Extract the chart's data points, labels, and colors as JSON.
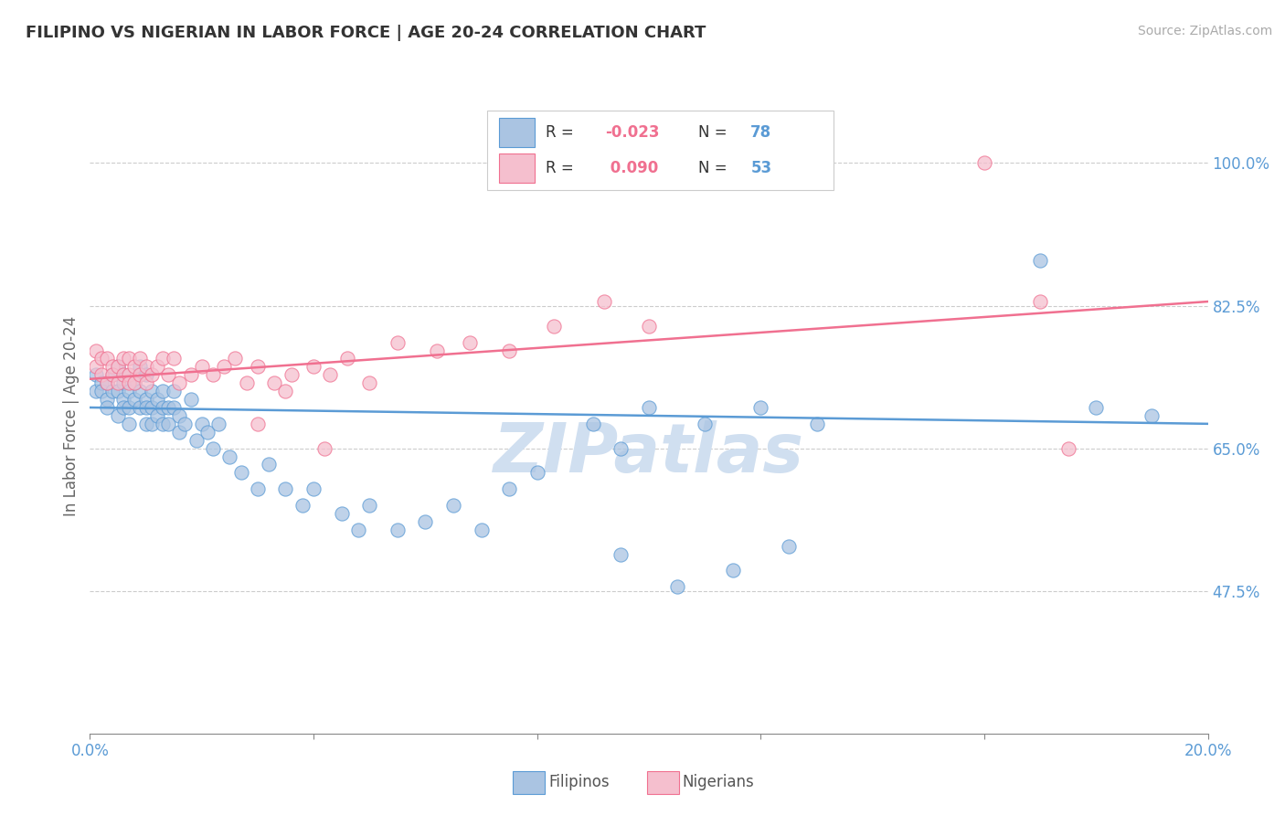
{
  "title": "FILIPINO VS NIGERIAN IN LABOR FORCE | AGE 20-24 CORRELATION CHART",
  "source_text": "Source: ZipAtlas.com",
  "ylabel_text": "In Labor Force | Age 20-24",
  "xlim": [
    0.0,
    0.2
  ],
  "ylim": [
    0.3,
    1.08
  ],
  "ytick_positions": [
    0.475,
    0.65,
    0.825,
    1.0
  ],
  "ytick_labels": [
    "47.5%",
    "65.0%",
    "82.5%",
    "100.0%"
  ],
  "xtick_positions": [
    0.0,
    0.2
  ],
  "xtick_labels": [
    "0.0%",
    "20.0%"
  ],
  "filipino_fill_color": "#aac4e2",
  "filipino_edge_color": "#5b9bd5",
  "nigerian_fill_color": "#f5bfce",
  "nigerian_edge_color": "#f07090",
  "filipino_line_color": "#5b9bd5",
  "nigerian_line_color": "#f07090",
  "watermark": "ZIPatlas",
  "watermark_color": "#d0dff0",
  "background_color": "#ffffff",
  "r_value_color": "#f07090",
  "n_value_color": "#5b9bd5",
  "filipino_scatter_x": [
    0.001,
    0.001,
    0.002,
    0.002,
    0.003,
    0.003,
    0.003,
    0.004,
    0.004,
    0.005,
    0.005,
    0.005,
    0.006,
    0.006,
    0.006,
    0.006,
    0.007,
    0.007,
    0.007,
    0.008,
    0.008,
    0.009,
    0.009,
    0.009,
    0.01,
    0.01,
    0.01,
    0.01,
    0.011,
    0.011,
    0.011,
    0.012,
    0.012,
    0.013,
    0.013,
    0.013,
    0.014,
    0.014,
    0.015,
    0.015,
    0.016,
    0.016,
    0.017,
    0.018,
    0.019,
    0.02,
    0.021,
    0.022,
    0.023,
    0.025,
    0.027,
    0.03,
    0.032,
    0.035,
    0.038,
    0.04,
    0.045,
    0.048,
    0.05,
    0.055,
    0.06,
    0.065,
    0.07,
    0.075,
    0.08,
    0.09,
    0.095,
    0.1,
    0.11,
    0.12,
    0.13,
    0.17,
    0.18,
    0.19,
    0.095,
    0.105,
    0.115,
    0.125
  ],
  "filipino_scatter_y": [
    0.72,
    0.74,
    0.73,
    0.72,
    0.71,
    0.73,
    0.7,
    0.72,
    0.74,
    0.75,
    0.72,
    0.69,
    0.74,
    0.73,
    0.71,
    0.7,
    0.72,
    0.7,
    0.68,
    0.71,
    0.73,
    0.75,
    0.72,
    0.7,
    0.71,
    0.74,
    0.7,
    0.68,
    0.72,
    0.7,
    0.68,
    0.71,
    0.69,
    0.72,
    0.7,
    0.68,
    0.7,
    0.68,
    0.72,
    0.7,
    0.69,
    0.67,
    0.68,
    0.71,
    0.66,
    0.68,
    0.67,
    0.65,
    0.68,
    0.64,
    0.62,
    0.6,
    0.63,
    0.6,
    0.58,
    0.6,
    0.57,
    0.55,
    0.58,
    0.55,
    0.56,
    0.58,
    0.55,
    0.6,
    0.62,
    0.68,
    0.65,
    0.7,
    0.68,
    0.7,
    0.68,
    0.88,
    0.7,
    0.69,
    0.52,
    0.48,
    0.5,
    0.53
  ],
  "nigerian_scatter_x": [
    0.001,
    0.001,
    0.002,
    0.002,
    0.003,
    0.003,
    0.004,
    0.004,
    0.005,
    0.005,
    0.006,
    0.006,
    0.007,
    0.007,
    0.007,
    0.008,
    0.008,
    0.009,
    0.009,
    0.01,
    0.01,
    0.011,
    0.012,
    0.013,
    0.014,
    0.015,
    0.016,
    0.018,
    0.02,
    0.022,
    0.024,
    0.026,
    0.028,
    0.03,
    0.033,
    0.036,
    0.04,
    0.043,
    0.046,
    0.05,
    0.055,
    0.062,
    0.068,
    0.075,
    0.083,
    0.092,
    0.1,
    0.03,
    0.035,
    0.042,
    0.16,
    0.17,
    0.175
  ],
  "nigerian_scatter_y": [
    0.77,
    0.75,
    0.76,
    0.74,
    0.76,
    0.73,
    0.75,
    0.74,
    0.73,
    0.75,
    0.76,
    0.74,
    0.76,
    0.74,
    0.73,
    0.75,
    0.73,
    0.76,
    0.74,
    0.75,
    0.73,
    0.74,
    0.75,
    0.76,
    0.74,
    0.76,
    0.73,
    0.74,
    0.75,
    0.74,
    0.75,
    0.76,
    0.73,
    0.75,
    0.73,
    0.74,
    0.75,
    0.74,
    0.76,
    0.73,
    0.78,
    0.77,
    0.78,
    0.77,
    0.8,
    0.83,
    0.8,
    0.68,
    0.72,
    0.65,
    1.0,
    0.83,
    0.65
  ],
  "filipino_trend": [
    0.0,
    0.2,
    0.7,
    0.68
  ],
  "nigerian_trend": [
    0.0,
    0.2,
    0.735,
    0.83
  ]
}
